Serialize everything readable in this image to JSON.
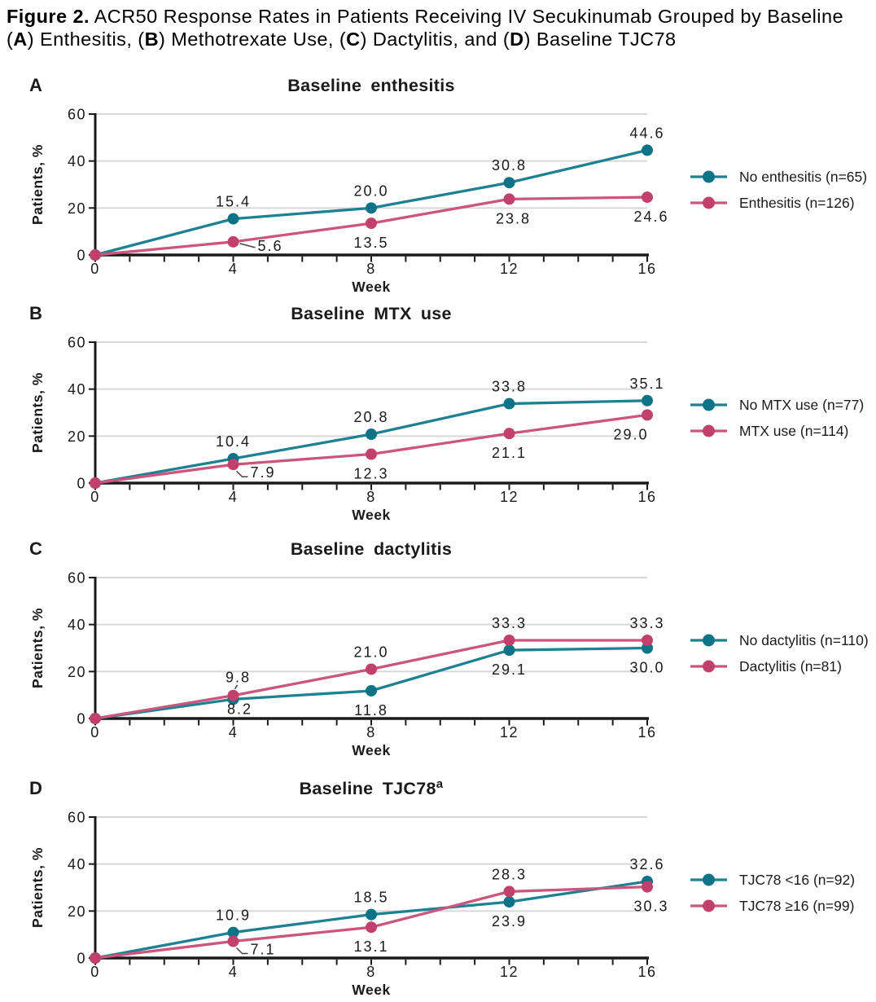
{
  "header": {
    "figure_label": "Figure 2.",
    "line1_rest": " ACR50 Response Rates in Patients Receiving IV Secukinumab Grouped by Baseline",
    "line2_segments": [
      {
        "text": "(",
        "bold": false
      },
      {
        "text": "A",
        "bold": true
      },
      {
        "text": ") Enthesitis, (",
        "bold": false
      },
      {
        "text": "B",
        "bold": true
      },
      {
        "text": ") Methotrexate Use, (",
        "bold": false
      },
      {
        "text": "C",
        "bold": true
      },
      {
        "text": ") Dactylitis, and (",
        "bold": false
      },
      {
        "text": "D",
        "bold": true
      },
      {
        "text": ") Baseline TJC78",
        "bold": false
      }
    ]
  },
  "colors": {
    "teal_line": "#1D8191",
    "teal_marker": "#0E7386",
    "pink_line": "#CB557D",
    "pink_marker": "#C2406C",
    "grid": "#D8D8D8",
    "axis": "#1A1A1A",
    "connector": "#444444"
  },
  "chart_data": [
    {
      "type": "line",
      "panel": "A",
      "title": "Baseline enthesitis",
      "title_sup": "",
      "xlabel": "Week",
      "ylabel": "Patients, %",
      "ylim": [
        0,
        60
      ],
      "yticks": [
        0,
        20,
        40,
        60
      ],
      "x": [
        0,
        4,
        8,
        12,
        16
      ],
      "series": [
        {
          "name": "No enthesitis (n=65)",
          "color": "teal",
          "values": [
            0,
            15.4,
            20.0,
            30.8,
            44.6
          ],
          "point_labels": [
            null,
            {
              "text": "15.4",
              "pos": "above"
            },
            {
              "text": "20.0",
              "pos": "above"
            },
            {
              "text": "30.8",
              "pos": "above"
            },
            {
              "text": "44.6",
              "pos": "above"
            }
          ]
        },
        {
          "name": "Enthesitis (n=126)",
          "color": "pink",
          "values": [
            0,
            5.6,
            13.5,
            23.8,
            24.6
          ],
          "point_labels": [
            null,
            {
              "text": "5.6",
              "pos": "right-line"
            },
            {
              "text": "13.5",
              "pos": "below"
            },
            {
              "text": "23.8",
              "pos": "below",
              "dx": 5
            },
            {
              "text": "24.6",
              "pos": "below",
              "dx": 5
            }
          ]
        }
      ]
    },
    {
      "type": "line",
      "panel": "B",
      "title": "Baseline MTX use",
      "title_sup": "",
      "xlabel": "Week",
      "ylabel": "Patients, %",
      "ylim": [
        0,
        60
      ],
      "yticks": [
        0,
        20,
        40,
        60
      ],
      "x": [
        0,
        4,
        8,
        12,
        16
      ],
      "series": [
        {
          "name": "No MTX use (n=77)",
          "color": "teal",
          "values": [
            0,
            10.4,
            20.8,
            33.8,
            35.1
          ],
          "point_labels": [
            null,
            {
              "text": "10.4",
              "pos": "above"
            },
            {
              "text": "20.8",
              "pos": "above"
            },
            {
              "text": "33.8",
              "pos": "above"
            },
            {
              "text": "35.1",
              "pos": "above"
            }
          ]
        },
        {
          "name": "MTX use (n=114)",
          "color": "pink",
          "values": [
            0,
            7.9,
            12.3,
            21.1,
            29.0
          ],
          "point_labels": [
            null,
            {
              "text": "7.9",
              "pos": "below-line"
            },
            {
              "text": "12.3",
              "pos": "below"
            },
            {
              "text": "21.1",
              "pos": "below"
            },
            {
              "text": "29.0",
              "pos": "below",
              "dx": -20
            }
          ]
        }
      ]
    },
    {
      "type": "line",
      "panel": "C",
      "title": "Baseline dactylitis",
      "title_sup": "",
      "xlabel": "Week",
      "ylabel": "Patients, %",
      "ylim": [
        0,
        60
      ],
      "yticks": [
        0,
        20,
        40,
        60
      ],
      "x": [
        0,
        4,
        8,
        12,
        16
      ],
      "series": [
        {
          "name": "No dactylitis (n=110)",
          "color": "teal",
          "values": [
            0,
            8.2,
            11.8,
            29.1,
            30.0
          ],
          "point_labels": [
            null,
            {
              "text": "8.2",
              "pos": "below",
              "dx": 8,
              "dy": -12
            },
            {
              "text": "11.8",
              "pos": "below"
            },
            {
              "text": "29.1",
              "pos": "below"
            },
            {
              "text": "30.0",
              "pos": "below"
            }
          ]
        },
        {
          "name": "Dactylitis (n=81)",
          "color": "pink",
          "values": [
            0,
            9.8,
            21.0,
            33.3,
            33.3
          ],
          "point_labels": [
            null,
            {
              "text": "9.8",
              "pos": "above-line"
            },
            {
              "text": "21.0",
              "pos": "above"
            },
            {
              "text": "33.3",
              "pos": "above"
            },
            {
              "text": "33.3",
              "pos": "above"
            }
          ]
        }
      ]
    },
    {
      "type": "line",
      "panel": "D",
      "title": "Baseline TJC78",
      "title_sup": "a",
      "xlabel": "Week",
      "ylabel": "Patients, %",
      "ylim": [
        0,
        60
      ],
      "yticks": [
        0,
        20,
        40,
        60
      ],
      "x": [
        0,
        4,
        8,
        12,
        16
      ],
      "series": [
        {
          "name": "TJC78 <16 (n=92)",
          "color": "teal",
          "values": [
            0,
            10.9,
            18.5,
            23.9,
            32.6
          ],
          "point_labels": [
            null,
            {
              "text": "10.9",
              "pos": "above"
            },
            {
              "text": "18.5",
              "pos": "above"
            },
            {
              "text": "23.9",
              "pos": "below"
            },
            {
              "text": "32.6",
              "pos": "above"
            }
          ]
        },
        {
          "name": "TJC78 ≥16 (n=99)",
          "color": "pink",
          "values": [
            0,
            7.1,
            13.1,
            28.3,
            30.3
          ],
          "point_labels": [
            null,
            {
              "text": "7.1",
              "pos": "below-line"
            },
            {
              "text": "13.1",
              "pos": "below"
            },
            {
              "text": "28.3",
              "pos": "above"
            },
            {
              "text": "30.3",
              "pos": "below",
              "dx": 5
            }
          ]
        }
      ]
    }
  ]
}
